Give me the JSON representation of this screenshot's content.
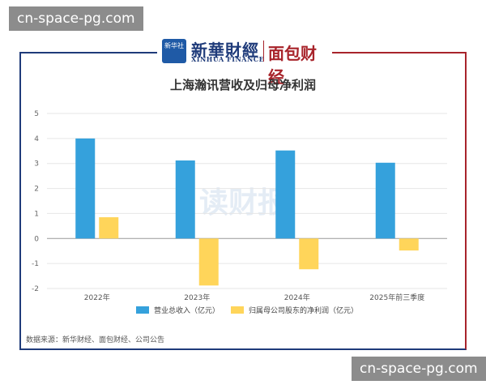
{
  "watermark_top": "cn-space-pg.com",
  "watermark_bottom": "cn-space-pg.com",
  "logo": {
    "badge": "新华社",
    "xinhua": "新華財經",
    "xinhua_sub": "XINHUA FINANCE",
    "mianbao": "面包财经"
  },
  "chart_watermark": "读财报",
  "source": "数据来源：新华财经、面包财经、公司公告",
  "colors": {
    "revenue": "#35a1dc",
    "profit": "#ffd55a",
    "axis": "#999999",
    "grid": "#e6e6e6"
  },
  "chart_data": {
    "type": "bar",
    "title": "上海瀚讯营收及归母净利润",
    "categories": [
      "2022年",
      "2023年",
      "2024年",
      "2025年前三季度"
    ],
    "series": [
      {
        "name": "营业总收入（亿元）",
        "values": [
          4.0,
          3.12,
          3.52,
          3.03
        ]
      },
      {
        "name": "归属母公司股东的净利润（亿元）",
        "values": [
          0.85,
          -1.88,
          -1.23,
          -0.48
        ]
      }
    ],
    "yticks": [
      5,
      4,
      3,
      2,
      1,
      0,
      -1,
      -2
    ],
    "ylim": [
      -2,
      5
    ],
    "grid": true,
    "legend": "bottom"
  }
}
